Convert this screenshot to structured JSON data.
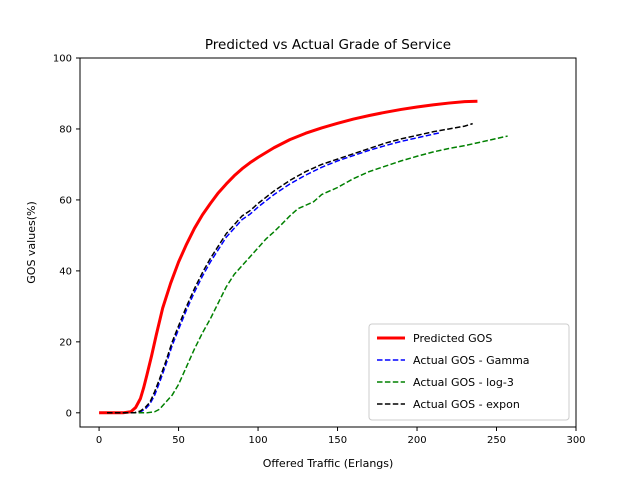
{
  "chart_data": {
    "type": "line",
    "title": "Predicted vs Actual Grade of Service",
    "xlabel": "Offered Traffic (Erlangs)",
    "ylabel": "GOS values(%)",
    "xlim": [
      -12,
      300
    ],
    "ylim": [
      -4,
      100
    ],
    "xticks": [
      0,
      50,
      100,
      150,
      200,
      250,
      300
    ],
    "yticks": [
      0,
      20,
      40,
      60,
      80,
      100
    ],
    "grid": false,
    "legend_position": "lower-right",
    "series": [
      {
        "name": "Predicted GOS",
        "color": "#ff0000",
        "linestyle": "solid",
        "linewidth": 3,
        "x": [
          0,
          10,
          15,
          20,
          23,
          26,
          28,
          30,
          33,
          36,
          40,
          45,
          50,
          55,
          60,
          65,
          70,
          75,
          80,
          85,
          90,
          95,
          100,
          110,
          120,
          130,
          140,
          150,
          160,
          170,
          180,
          190,
          200,
          210,
          220,
          230,
          238
        ],
        "y": [
          0,
          0,
          0,
          0.3,
          1.5,
          4,
          7,
          10.5,
          16,
          22,
          29.5,
          36.5,
          42.5,
          47.5,
          52,
          55.8,
          59,
          62,
          64.5,
          66.8,
          68.8,
          70.5,
          72,
          74.7,
          77,
          78.8,
          80.3,
          81.6,
          82.8,
          83.8,
          84.7,
          85.5,
          86.2,
          86.8,
          87.3,
          87.7,
          87.8
        ]
      },
      {
        "name": "Actual GOS - Gamma",
        "color": "#0000ff",
        "linestyle": "dashed",
        "linewidth": 1.5,
        "x": [
          5,
          15,
          22,
          26,
          29,
          32,
          35,
          38,
          42,
          46,
          50,
          55,
          60,
          65,
          70,
          75,
          80,
          85,
          90,
          95,
          100,
          110,
          120,
          130,
          140,
          150,
          160,
          170,
          180,
          190,
          200,
          210,
          215
        ],
        "y": [
          0,
          0,
          0,
          0.3,
          1,
          2.5,
          5,
          8.5,
          13.5,
          19,
          23.5,
          29,
          34,
          38.5,
          42.5,
          46,
          49.5,
          52,
          54.5,
          56,
          58,
          61.5,
          64.5,
          67,
          69.2,
          71,
          72.5,
          74,
          75.3,
          76.5,
          77.5,
          78.5,
          79
        ]
      },
      {
        "name": "Actual GOS - log-3",
        "color": "#008000",
        "linestyle": "dashed",
        "linewidth": 1.5,
        "x": [
          5,
          20,
          30,
          35,
          38,
          42,
          46,
          50,
          55,
          60,
          65,
          70,
          75,
          80,
          85,
          90,
          95,
          100,
          105,
          110,
          115,
          120,
          125,
          130,
          135,
          140,
          150,
          160,
          170,
          180,
          190,
          200,
          210,
          220,
          230,
          240,
          250,
          257
        ],
        "y": [
          0,
          0,
          0,
          0.3,
          1,
          3,
          5,
          8,
          13,
          18,
          22.5,
          26.5,
          31,
          35.5,
          39,
          41.5,
          44,
          46.5,
          49,
          51,
          53.2,
          55.5,
          57.5,
          58.5,
          59.5,
          61.5,
          63.5,
          66,
          68,
          69.5,
          71,
          72.3,
          73.5,
          74.5,
          75.3,
          76.3,
          77.3,
          78
        ]
      },
      {
        "name": "Actual GOS - expon",
        "color": "#000000",
        "linestyle": "dashed",
        "linewidth": 1.5,
        "x": [
          5,
          15,
          22,
          26,
          29,
          32,
          35,
          38,
          42,
          46,
          50,
          55,
          60,
          65,
          70,
          75,
          80,
          85,
          90,
          95,
          100,
          110,
          120,
          130,
          140,
          150,
          160,
          170,
          180,
          190,
          200,
          210,
          220,
          230,
          235
        ],
        "y": [
          0,
          0,
          0,
          0.5,
          1.5,
          3,
          6,
          9.5,
          14.5,
          20,
          24.5,
          30,
          35,
          39.5,
          43.5,
          47,
          50.5,
          53,
          55.5,
          57,
          59,
          62.5,
          65.5,
          68,
          70,
          71.5,
          73,
          74.5,
          76,
          77.2,
          78.2,
          79.2,
          80,
          80.8,
          81.5
        ]
      }
    ]
  }
}
